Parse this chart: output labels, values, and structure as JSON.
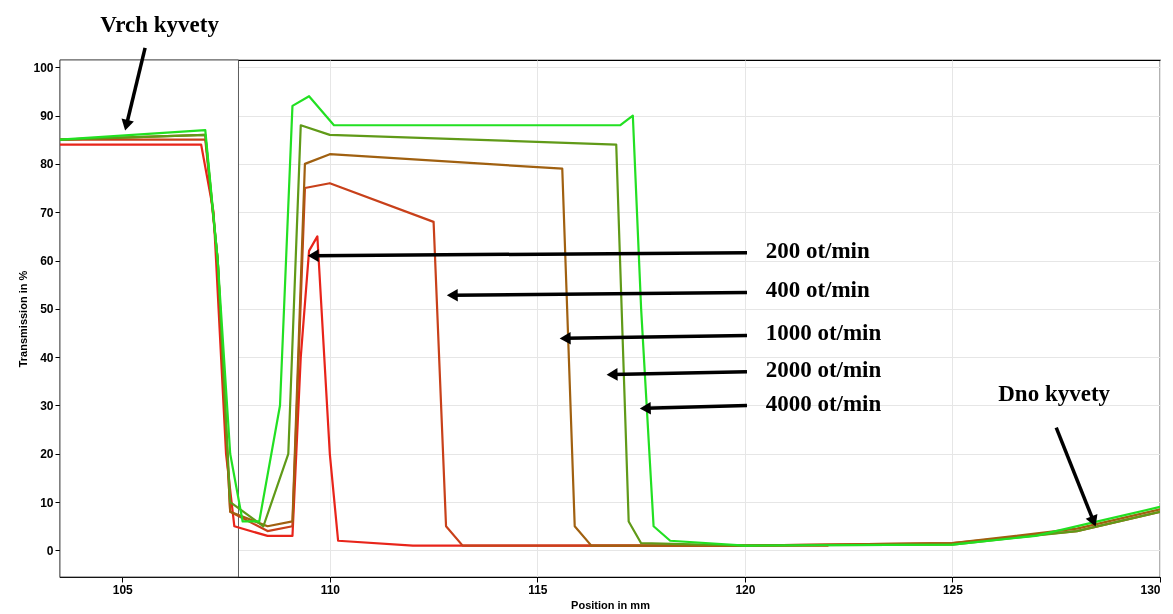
{
  "chart_data": {
    "type": "line",
    "xlabel": "Position in mm",
    "ylabel": "Transmission in %",
    "xlim": [
      103.5,
      130
    ],
    "ylim": [
      -5.5,
      101.5
    ],
    "xticks": [
      105,
      110,
      115,
      120,
      125,
      130
    ],
    "yticks": [
      0,
      10,
      20,
      30,
      40,
      50,
      60,
      70,
      80,
      90,
      100
    ],
    "grid": true,
    "line_style": "solid",
    "marker": "none",
    "series": [
      {
        "color": "#e8241a",
        "x": [
          103.5,
          106.9,
          107.2,
          107.5,
          107.7,
          108.5,
          109.1,
          109.3,
          109.5,
          109.7,
          110.0,
          110.2,
          112,
          115,
          122
        ],
        "values": [
          84,
          84,
          70,
          20,
          5,
          3,
          3,
          40,
          62,
          65,
          20,
          2,
          1,
          1,
          1
        ]
      },
      {
        "color": "#c8401a",
        "x": [
          103.5,
          107.0,
          107.3,
          107.6,
          108.5,
          109.1,
          109.4,
          110.0,
          112.5,
          112.8,
          113.2,
          120,
          125,
          128,
          130
        ],
        "values": [
          85,
          85,
          60,
          8,
          4,
          5,
          75,
          76,
          68,
          5,
          1,
          1,
          1.5,
          4,
          8
        ]
      },
      {
        "color": "#a06010",
        "x": [
          103.5,
          107.0,
          107.3,
          107.6,
          108.5,
          109.1,
          109.4,
          110.0,
          115.6,
          115.9,
          116.3,
          120,
          125,
          128,
          130
        ],
        "values": [
          85,
          86,
          60,
          8,
          5,
          6,
          80,
          82,
          79,
          5,
          1,
          1,
          1.5,
          4.5,
          8.5
        ]
      },
      {
        "color": "#609a18",
        "x": [
          103.5,
          107.0,
          107.3,
          107.6,
          108.4,
          109.0,
          109.3,
          110.0,
          116.9,
          117.2,
          117.5,
          120,
          125,
          128,
          130
        ],
        "values": [
          85,
          86,
          60,
          10,
          5,
          20,
          88,
          86,
          84,
          6,
          1.5,
          1,
          1.2,
          4,
          8
        ]
      },
      {
        "color": "#22e022",
        "x": [
          103.5,
          107.0,
          107.3,
          107.6,
          107.9,
          108.3,
          108.8,
          109.1,
          109.5,
          110.1,
          112,
          117.0,
          117.3,
          117.5,
          117.8,
          118.2,
          120,
          125,
          127,
          128.5,
          130
        ],
        "values": [
          85,
          87,
          60,
          20,
          6,
          6,
          30,
          92,
          94,
          88,
          88,
          88,
          90,
          50,
          5,
          2,
          1,
          1.2,
          3,
          6,
          9
        ]
      }
    ],
    "bands": [
      {
        "axis": "x",
        "from": 103.5,
        "to": 107.8
      }
    ],
    "annotations": [
      {
        "text": "Vrch kyvety",
        "x": 105.1,
        "y": 88
      },
      {
        "text": "200 ot/min",
        "x": 109.6,
        "y": 61
      },
      {
        "text": "400 ot/min",
        "x": 112.95,
        "y": 52.8
      },
      {
        "text": "1000 ot/min",
        "x": 115.67,
        "y": 43.9
      },
      {
        "text": "2000 ot/min",
        "x": 116.8,
        "y": 36.4
      },
      {
        "text": "4000 ot/min",
        "x": 117.6,
        "y": 29.4
      },
      {
        "text": "Dno kyvety",
        "x": 128.4,
        "y": 6
      }
    ]
  }
}
